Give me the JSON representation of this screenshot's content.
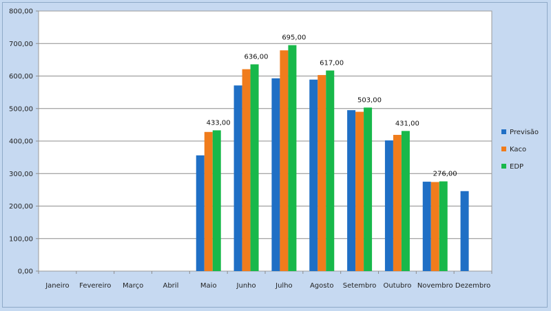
{
  "chart_data": {
    "type": "bar",
    "categories": [
      "Janeiro",
      "Fevereiro",
      "Março",
      "Abril",
      "Maio",
      "Junho",
      "Julho",
      "Agosto",
      "Setembro",
      "Outubro",
      "Novembro",
      "Dezembro"
    ],
    "series": [
      {
        "name": "Previsão",
        "color": "#1f6fc5",
        "values": [
          null,
          null,
          null,
          null,
          356,
          571,
          593,
          589,
          495,
          402,
          275,
          246
        ]
      },
      {
        "name": "Kaco",
        "color": "#f07c1c",
        "values": [
          null,
          null,
          null,
          null,
          428,
          621,
          679,
          603,
          490,
          419,
          274,
          null
        ]
      },
      {
        "name": "EDP",
        "color": "#18b84a",
        "values": [
          null,
          null,
          null,
          null,
          433,
          636,
          695,
          617,
          503,
          431,
          276,
          null
        ]
      }
    ],
    "data_labels": [
      "",
      "",
      "",
      "",
      "433,00",
      "636,00",
      "695,00",
      "617,00",
      "503,00",
      "431,00",
      "276,00",
      ""
    ],
    "y_ticks": [
      "0,00",
      "100,00",
      "200,00",
      "300,00",
      "400,00",
      "500,00",
      "600,00",
      "700,00",
      "800,00"
    ],
    "ylim": [
      0,
      800
    ],
    "title": "",
    "xlabel": "",
    "ylabel": "",
    "grid": true,
    "legend_position": "right"
  }
}
